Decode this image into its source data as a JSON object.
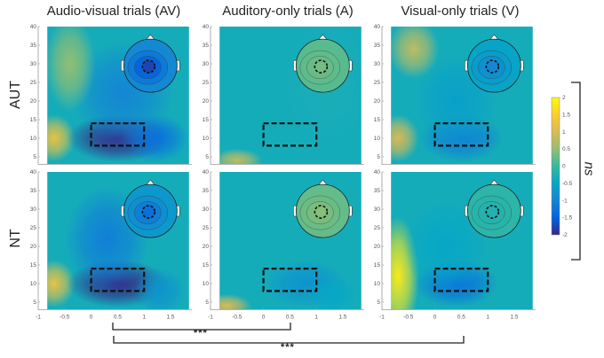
{
  "chart_data": {
    "type": "heatmap",
    "columns": [
      {
        "title": "Audio-visual trials (AV)"
      },
      {
        "title": "Auditory-only trials (A)"
      },
      {
        "title": "Visual-only trials (V)"
      }
    ],
    "rows": [
      {
        "label": "AUT"
      },
      {
        "label": "NT"
      }
    ],
    "xlim": [
      -1,
      1.9
    ],
    "ylim": [
      3,
      40
    ],
    "xticks": [
      "-1",
      "-0.5",
      "0",
      "0.5",
      "1",
      "1.5"
    ],
    "yticks": [
      "5",
      "10",
      "15",
      "20",
      "25",
      "30",
      "35",
      "40"
    ],
    "roi_box": {
      "x": [
        0,
        1
      ],
      "y": [
        8,
        14
      ]
    },
    "colorbar": {
      "range": [
        -2,
        2
      ],
      "ticks": [
        "2",
        "1.5",
        "1",
        "0.5",
        "0",
        "-0.5",
        "-1",
        "-1.5",
        "-2"
      ]
    },
    "panels": [
      [
        {
          "blobs": [
            [
              -0.7,
              10,
              1.2,
              0.25,
              4
            ],
            [
              0.5,
              10,
              -2.0,
              0.6,
              4
            ],
            [
              1.2,
              10,
              -1.3,
              0.4,
              4
            ],
            [
              0.6,
              22,
              -1.0,
              0.6,
              9
            ],
            [
              -0.4,
              30,
              0.5,
              0.3,
              8
            ]
          ],
          "topo": -1.6
        },
        {
          "blobs": [
            [
              -0.5,
              4,
              0.8,
              0.3,
              2
            ],
            [
              1.2,
              25,
              -0.3,
              0.5,
              10
            ]
          ],
          "topo": 0.3
        },
        {
          "blobs": [
            [
              -0.7,
              10,
              1.0,
              0.25,
              4
            ],
            [
              0.5,
              10,
              -1.1,
              0.5,
              4
            ],
            [
              0.4,
              20,
              -0.6,
              0.5,
              8
            ],
            [
              -0.4,
              34,
              0.8,
              0.3,
              5
            ]
          ],
          "topo": -0.9
        }
      ],
      [
        {
          "blobs": [
            [
              -0.7,
              10,
              1.2,
              0.25,
              4
            ],
            [
              0.5,
              10,
              -2.0,
              0.6,
              4
            ],
            [
              0.3,
              22,
              -1.1,
              0.5,
              9
            ],
            [
              1.3,
              8,
              -0.8,
              0.3,
              4
            ]
          ],
          "topo": -1.2
        },
        {
          "blobs": [
            [
              -0.7,
              4,
              1.0,
              0.3,
              2
            ],
            [
              0.8,
              10,
              -0.8,
              0.5,
              4
            ],
            [
              1.3,
              7,
              -0.5,
              0.3,
              3
            ]
          ],
          "topo": 0.4
        },
        {
          "blobs": [
            [
              -0.7,
              12,
              1.8,
              0.25,
              10
            ],
            [
              0.4,
              10,
              -1.3,
              0.5,
              4
            ],
            [
              0.2,
              20,
              -0.5,
              0.5,
              8
            ]
          ],
          "topo": -0.2
        }
      ]
    ],
    "comparisons": [
      {
        "label": "***",
        "from": "AV",
        "to": "A"
      },
      {
        "label": "***",
        "from": "AV",
        "to": "V"
      },
      {
        "label": "ns",
        "between": "AUT vs NT"
      }
    ]
  }
}
